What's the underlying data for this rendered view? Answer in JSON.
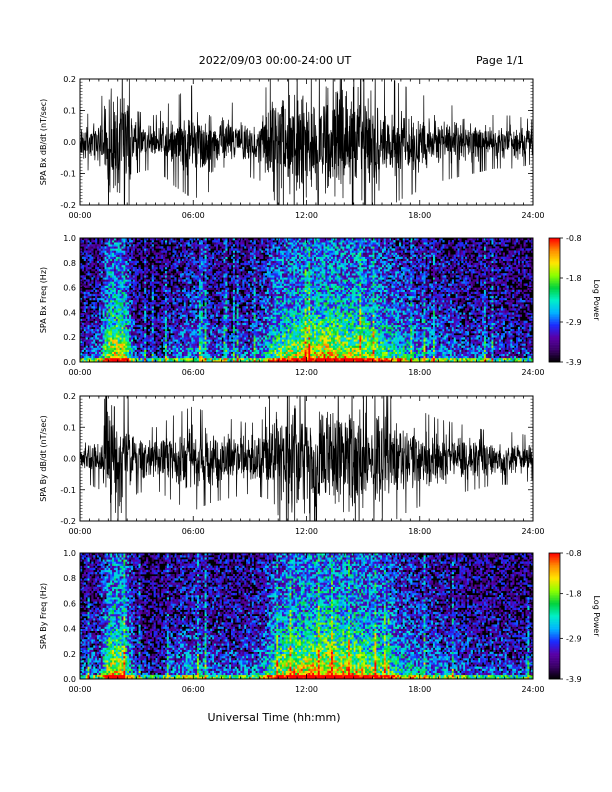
{
  "header": {
    "title": "2022/09/03  00:00-24:00 UT",
    "page": "Page 1/1"
  },
  "xlabel": "Universal Time (hh:mm)",
  "chart_data": [
    {
      "type": "line",
      "ylabel": "SPA Bx dB/dt (nT/sec)",
      "ylim": [
        -0.2,
        0.2
      ],
      "yticks": [
        "0.2",
        "0.1",
        "0.0",
        "-0.1",
        "-0.2"
      ],
      "yticks_values": [
        0.2,
        0.1,
        0.0,
        -0.1,
        -0.2
      ],
      "xticks": [
        "00:00",
        "06:00",
        "12:00",
        "18:00",
        "24:00"
      ],
      "xlim_hours": [
        0,
        24
      ],
      "envelope": {
        "hours": [
          0,
          1,
          1.6,
          2.3,
          3,
          4,
          5,
          6,
          7,
          8,
          9,
          9.7,
          10.2,
          11,
          12,
          13,
          14,
          15,
          16,
          17,
          18,
          19,
          20,
          21,
          22,
          23,
          24
        ],
        "amplitude": [
          0.06,
          0.07,
          0.2,
          0.2,
          0.07,
          0.06,
          0.1,
          0.13,
          0.11,
          0.09,
          0.08,
          0.09,
          0.2,
          0.2,
          0.2,
          0.2,
          0.2,
          0.2,
          0.16,
          0.13,
          0.11,
          0.09,
          0.08,
          0.07,
          0.06,
          0.06,
          0.05
        ]
      }
    },
    {
      "type": "heatmap",
      "ylabel": "SPA Bx Freq (Hz)",
      "ylim": [
        0,
        1.0
      ],
      "yticks": [
        "1.0",
        "0.8",
        "0.6",
        "0.4",
        "0.2",
        "0.0"
      ],
      "yticks_values": [
        1.0,
        0.8,
        0.6,
        0.4,
        0.2,
        0.0
      ],
      "xticks": [
        "00:00",
        "06:00",
        "12:00",
        "18:00",
        "24:00"
      ],
      "xlim_hours": [
        0,
        24
      ],
      "colorbar": {
        "label": "Log Power",
        "ticks": [
          "-0.8",
          "-1.8",
          "-2.9",
          "-3.9"
        ],
        "range": [
          -3.9,
          -0.8
        ],
        "colors": [
          "#000000",
          "#3a0066",
          "#5a00a8",
          "#1a2cff",
          "#00b4ff",
          "#00f0c8",
          "#00d23c",
          "#8cff00",
          "#ffe600",
          "#ff8c00",
          "#ff0000"
        ]
      },
      "activity": {
        "hours": [
          0,
          1,
          1.6,
          2.3,
          3,
          4,
          5,
          6,
          7,
          8,
          9,
          9.7,
          10.2,
          11,
          12,
          13,
          14,
          15,
          16,
          17,
          18,
          19,
          20,
          21,
          22,
          23,
          24
        ],
        "level": [
          0.3,
          0.35,
          0.9,
          0.85,
          0.25,
          0.2,
          0.35,
          0.45,
          0.35,
          0.3,
          0.35,
          0.45,
          0.65,
          0.8,
          0.85,
          0.9,
          0.85,
          0.8,
          0.7,
          0.55,
          0.45,
          0.4,
          0.35,
          0.3,
          0.3,
          0.28,
          0.25
        ]
      }
    },
    {
      "type": "line",
      "ylabel": "SPA By dB/dt (nT/sec)",
      "ylim": [
        -0.2,
        0.2
      ],
      "yticks": [
        "0.2",
        "0.1",
        "0.0",
        "-0.1",
        "-0.2"
      ],
      "yticks_values": [
        0.2,
        0.1,
        0.0,
        -0.1,
        -0.2
      ],
      "xticks": [
        "00:00",
        "06:00",
        "12:00",
        "18:00",
        "24:00"
      ],
      "xlim_hours": [
        0,
        24
      ],
      "envelope": {
        "hours": [
          0,
          1,
          1.6,
          2.3,
          3,
          4,
          5,
          6,
          7,
          8,
          9,
          9.7,
          10.2,
          11,
          12,
          13,
          14,
          15,
          16,
          17,
          18,
          19,
          20,
          21,
          22,
          23,
          24
        ],
        "amplitude": [
          0.05,
          0.07,
          0.2,
          0.2,
          0.08,
          0.07,
          0.1,
          0.12,
          0.1,
          0.09,
          0.08,
          0.09,
          0.2,
          0.2,
          0.2,
          0.2,
          0.2,
          0.2,
          0.17,
          0.13,
          0.11,
          0.09,
          0.08,
          0.07,
          0.06,
          0.06,
          0.05
        ]
      }
    },
    {
      "type": "heatmap",
      "ylabel": "SPA By Freq (Hz)",
      "ylim": [
        0,
        1.0
      ],
      "yticks": [
        "1.0",
        "0.8",
        "0.6",
        "0.4",
        "0.2",
        "0.0"
      ],
      "yticks_values": [
        1.0,
        0.8,
        0.6,
        0.4,
        0.2,
        0.0
      ],
      "xticks": [
        "00:00",
        "06:00",
        "12:00",
        "18:00",
        "24:00"
      ],
      "xlim_hours": [
        0,
        24
      ],
      "colorbar": {
        "label": "Log Power",
        "ticks": [
          "-0.8",
          "-1.8",
          "-2.9",
          "-3.9"
        ],
        "range": [
          -3.9,
          -0.8
        ],
        "colors": [
          "#000000",
          "#3a0066",
          "#5a00a8",
          "#1a2cff",
          "#00b4ff",
          "#00f0c8",
          "#00d23c",
          "#8cff00",
          "#ffe600",
          "#ff8c00",
          "#ff0000"
        ]
      },
      "activity": {
        "hours": [
          0,
          1,
          1.6,
          2.3,
          3,
          4,
          5,
          6,
          7,
          8,
          9,
          9.7,
          10.2,
          11,
          12,
          13,
          14,
          15,
          16,
          17,
          18,
          19,
          20,
          21,
          22,
          23,
          24
        ],
        "level": [
          0.3,
          0.35,
          0.9,
          0.85,
          0.25,
          0.2,
          0.35,
          0.45,
          0.35,
          0.3,
          0.35,
          0.45,
          0.65,
          0.85,
          0.9,
          0.95,
          0.9,
          0.85,
          0.7,
          0.55,
          0.45,
          0.4,
          0.35,
          0.3,
          0.3,
          0.28,
          0.25
        ]
      }
    }
  ]
}
